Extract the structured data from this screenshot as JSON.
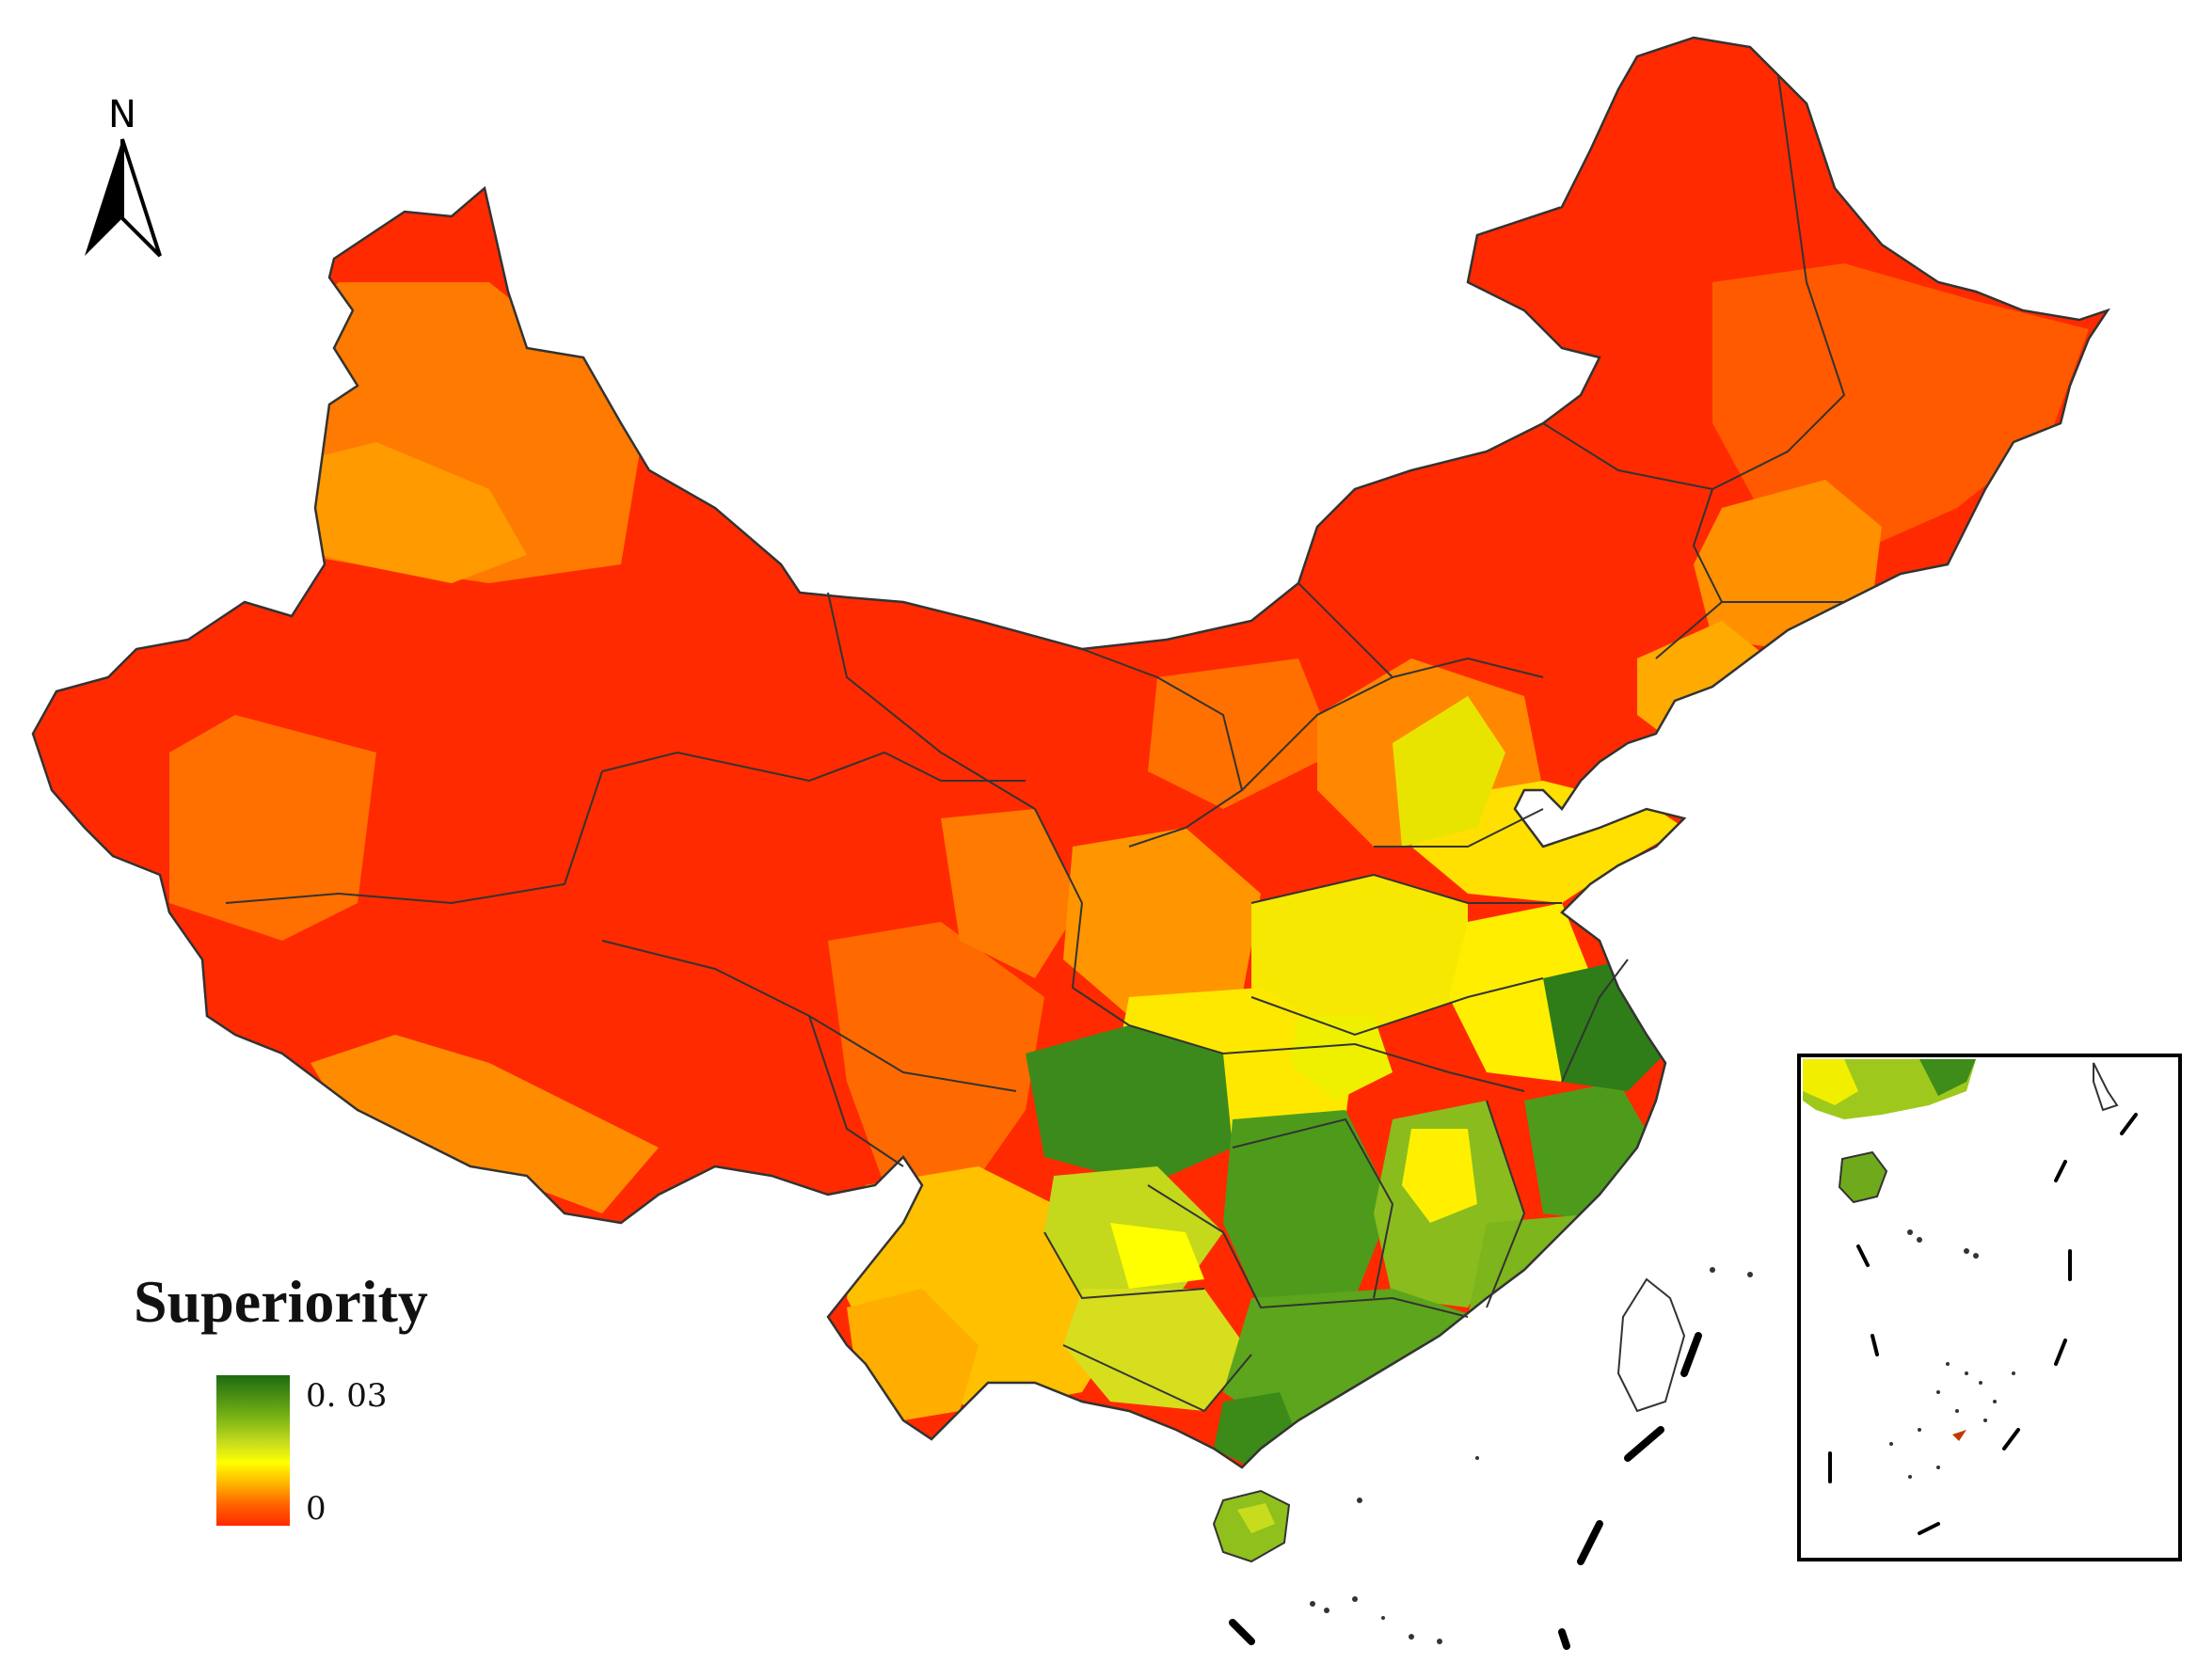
{
  "north_arrow": {
    "letter": "N",
    "icon": "north-arrow-icon"
  },
  "legend": {
    "title": "Superiority",
    "max_label": "0. 03",
    "min_label": "0",
    "value_max": 0.03,
    "value_min": 0,
    "colors": [
      "#1e6b12",
      "#78b414",
      "#c8dc1e",
      "#ffff00",
      "#ffb400",
      "#ff6400",
      "#ff2800"
    ]
  },
  "map": {
    "subject": "China, prefecture-level superiority",
    "fill_colors": {
      "highest": "#2a7317",
      "high": "#6fa81c",
      "mid_high": "#b4d21e",
      "mid": "#f0ec00",
      "mid_low": "#ffc200",
      "low": "#ff7a00",
      "lowest": "#ff2a00"
    },
    "border_color": "#333333"
  },
  "inset": {
    "icon": "south-china-sea-inset-map"
  }
}
